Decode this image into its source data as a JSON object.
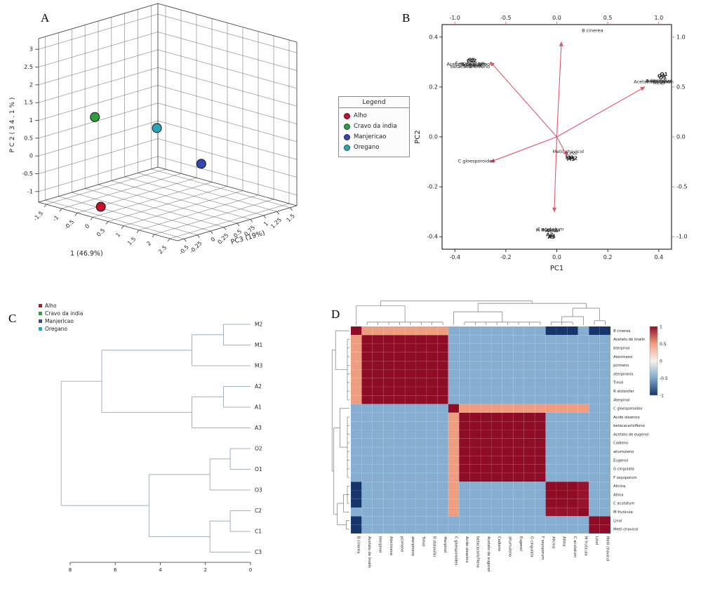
{
  "panel_labels": {
    "a": "A",
    "b": "B",
    "c": "C",
    "d": "D"
  },
  "legend_a": {
    "title": "Legend",
    "items": [
      {
        "label": "Alho",
        "color": "#c8102e"
      },
      {
        "label": "Cravo da india",
        "color": "#2f9e41"
      },
      {
        "label": "Manjericao",
        "color": "#3347b5"
      },
      {
        "label": "Oregano",
        "color": "#2aa7b5"
      }
    ]
  },
  "chart_data": [
    {
      "panel": "A",
      "type": "scatter3d",
      "axes": {
        "x": {
          "label": "1 (46.9%)",
          "ticks": [
            -1.5,
            -1,
            -0.5,
            0,
            0.5,
            1,
            1.5,
            2,
            2.5
          ],
          "range": [
            -1.75,
            2.75
          ]
        },
        "y": {
          "label": "P C 2  ( 3 4 . 1 % )",
          "ticks": [
            3,
            2.5,
            2,
            1.5,
            1,
            0.5,
            0,
            -0.5,
            -1
          ],
          "range": [
            -1.3,
            3.3
          ]
        },
        "z": {
          "label": "PC3 (19%)",
          "ticks": [
            -0.5,
            -0.25,
            0,
            0.25,
            0.5,
            0.75,
            1,
            1.25,
            1.5
          ],
          "range": [
            -0.625,
            1.625
          ]
        }
      },
      "points": [
        {
          "label": "Alho",
          "color": "#c8102e",
          "x": 0.05,
          "y": -1.05,
          "z": -0.5
        },
        {
          "label": "Cravo da india",
          "color": "#2f9e41",
          "x": -1.0,
          "y": 1.0,
          "z": 0.0
        },
        {
          "label": "Manjericao",
          "color": "#3347b5",
          "x": 0.9,
          "y": -0.25,
          "z": 0.9
        },
        {
          "label": "Oregano",
          "color": "#2aa7b5",
          "x": 0.15,
          "y": 0.75,
          "z": 0.5
        }
      ]
    },
    {
      "panel": "B",
      "type": "biplot",
      "xlabel": "PC1",
      "ylabel": "PC2",
      "xlim": [
        -0.45,
        0.45
      ],
      "ylim": [
        -0.45,
        0.45
      ],
      "secondary_lim": [
        -1.125,
        1.125
      ],
      "bottom_ticks": [
        "-0.4",
        "-0.2",
        "0.0",
        "0.2",
        "0.4"
      ],
      "left_ticks": [
        "-0.4",
        "-0.2",
        "0.0",
        "0.2",
        "0.4"
      ],
      "top_ticks": [
        "-1.0",
        "-0.5",
        "0.0",
        "0.5",
        "1.0"
      ],
      "right_ticks": [
        "-1.0",
        "-0.5",
        "0.0",
        "0.5",
        "1.0"
      ],
      "accent_color": "#e2556e",
      "arrows": [
        {
          "x": 0.018,
          "y": 0.38
        },
        {
          "x": -0.26,
          "y": 0.3
        },
        {
          "x": 0.345,
          "y": 0.2
        },
        {
          "x": -0.26,
          "y": -0.1
        },
        {
          "x": 0.04,
          "y": -0.075
        },
        {
          "x": -0.01,
          "y": -0.3
        }
      ],
      "loading_labels": [
        {
          "text": "B cinerea",
          "x": 0.14,
          "y": 0.42,
          "anchor": "middle"
        },
        {
          "text": "Acetato de eugenol",
          "x": -0.345,
          "y": 0.285,
          "anchor": "middle"
        },
        {
          "text": "Eugenol",
          "x": -0.33,
          "y": 0.28,
          "anchor": "middle"
        },
        {
          "text": "betacacariofileno",
          "x": -0.34,
          "y": 0.276,
          "anchor": "middle"
        },
        {
          "text": "Cadieno",
          "x": -0.35,
          "y": 0.282,
          "anchor": "middle"
        },
        {
          "text": "G cingulata",
          "x": -0.325,
          "y": 0.286,
          "anchor": "middle"
        },
        {
          "text": "F oxysporum",
          "x": -0.34,
          "y": 0.29,
          "anchor": "middle"
        },
        {
          "text": "Acetato de linalin",
          "x": 0.38,
          "y": 0.215,
          "anchor": "middle"
        },
        {
          "text": "Timol",
          "x": 0.4,
          "y": 0.21,
          "anchor": "middle"
        },
        {
          "text": "pcimeno",
          "x": 0.39,
          "y": 0.22,
          "anchor": "middle"
        },
        {
          "text": "bterpinol",
          "x": 0.41,
          "y": 0.215,
          "anchor": "middle"
        },
        {
          "text": "R stolonifer",
          "x": 0.4,
          "y": 0.218,
          "anchor": "middle"
        },
        {
          "text": "C gloesporoides",
          "x": -0.245,
          "y": -0.102,
          "anchor": "end"
        },
        {
          "text": "Metil chavicol",
          "x": 0.045,
          "y": -0.065,
          "anchor": "middle"
        },
        {
          "text": "Linol",
          "x": 0.06,
          "y": -0.072,
          "anchor": "middle"
        },
        {
          "text": "Alicina",
          "x": -0.03,
          "y": -0.378,
          "anchor": "middle"
        },
        {
          "text": "Aliina",
          "x": -0.02,
          "y": -0.382,
          "anchor": "middle"
        },
        {
          "text": "C acutatum",
          "x": -0.025,
          "y": -0.375,
          "anchor": "middle"
        },
        {
          "text": "M fruticula",
          "x": -0.035,
          "y": -0.38,
          "anchor": "middle"
        }
      ],
      "scores": [
        {
          "text": "C1",
          "x": -0.34,
          "y": 0.298
        },
        {
          "text": "C2",
          "x": -0.328,
          "y": 0.3
        },
        {
          "text": "C3",
          "x": -0.335,
          "y": 0.302
        },
        {
          "text": "O1",
          "x": 0.42,
          "y": 0.245
        },
        {
          "text": "O2",
          "x": 0.41,
          "y": 0.238
        },
        {
          "text": "O3",
          "x": 0.415,
          "y": 0.23
        },
        {
          "text": "M1",
          "x": 0.05,
          "y": -0.088
        },
        {
          "text": "M2",
          "x": 0.065,
          "y": -0.092
        },
        {
          "text": "M3",
          "x": 0.055,
          "y": -0.095
        },
        {
          "text": "A1",
          "x": -0.018,
          "y": -0.403
        },
        {
          "text": "A2",
          "x": -0.028,
          "y": -0.398
        },
        {
          "text": "A3",
          "x": -0.022,
          "y": -0.408
        }
      ]
    },
    {
      "panel": "C",
      "type": "dendrogram",
      "axis_ticks": [
        8,
        6,
        4,
        2,
        0
      ],
      "legend": [
        {
          "label": "Alho",
          "color": "#c8102e"
        },
        {
          "label": "Cravo da india",
          "color": "#2f9e41"
        },
        {
          "label": "Manjericao",
          "color": "#3347b5"
        },
        {
          "label": "Oregano",
          "color": "#2aa7b5"
        }
      ],
      "leaf_colors": {
        "M": "#4b5fc0",
        "A": "#d8414f",
        "O": "#35b8c9",
        "C": "#2f9e41"
      },
      "tree": {
        "h": 8.4,
        "c": [
          {
            "h": 6.6,
            "c": [
              {
                "h": 2.6,
                "c": [
                  {
                    "h": 1.2,
                    "c": [
                      "M2",
                      "M1"
                    ]
                  },
                  "M3"
                ]
              },
              {
                "h": 2.6,
                "c": [
                  {
                    "h": 1.2,
                    "c": [
                      "A2",
                      "A1"
                    ]
                  },
                  "A3"
                ]
              }
            ]
          },
          {
            "h": 4.5,
            "c": [
              {
                "h": 1.8,
                "c": [
                  {
                    "h": 0.9,
                    "c": [
                      "O2",
                      "O1"
                    ]
                  },
                  "O3"
                ]
              },
              {
                "h": 1.8,
                "c": [
                  {
                    "h": 0.9,
                    "c": [
                      "C2",
                      "C1"
                    ]
                  },
                  "C3"
                ]
              }
            ]
          }
        ]
      }
    },
    {
      "panel": "D",
      "type": "heatmap-correlation",
      "labels": [
        "B cinerea",
        "Acetato de linalin",
        "bterpinol",
        "Alocimeno",
        "pcimeno",
        "aterpineno",
        "Timol",
        "R stolonifer",
        "4terpinol",
        "C gloesporoides",
        "Acido oleanico",
        "betacacariofileno",
        "Acetato de eugenol",
        "Cadieno",
        "ahumuleno",
        "Eugenol",
        "G cingulata",
        "F oxysporum",
        "Alicina",
        "Allina",
        "C acutatum",
        "M fruticula",
        "Linol",
        "Metil chavicol"
      ],
      "groups": [
        [
          0
        ],
        [
          1,
          2,
          3,
          4,
          5,
          6,
          7,
          8
        ],
        [
          9
        ],
        [
          10,
          11,
          12,
          13,
          14,
          15,
          16,
          17
        ],
        [
          18,
          19,
          20
        ],
        [
          21
        ],
        [
          22,
          23
        ]
      ],
      "group_correlations": {
        "within": [
          1,
          1,
          1,
          1,
          1,
          1,
          1
        ],
        "between": {
          "0-1": 0.5,
          "0-2": -0.3,
          "0-3": -0.3,
          "0-4": -1,
          "0-5": -0.3,
          "0-6": -1,
          "1-2": -0.3,
          "1-3": -0.3,
          "1-4": -0.3,
          "1-5": -0.3,
          "1-6": -0.3,
          "2-3": 0.5,
          "2-4": 0.5,
          "2-5": 0.5,
          "2-6": -0.3,
          "3-4": -0.3,
          "3-5": -0.3,
          "3-6": -0.3,
          "4-5": 0.9,
          "4-6": -0.3,
          "5-6": -0.3
        }
      },
      "value_colors": {
        "1": "#8e0c25",
        "0.9": "#97122b",
        "0.5": "#ef9d80",
        "-0.3": "#85aed1",
        "-1": "#16356b"
      },
      "colorbar_ticks": [
        "1",
        "0.5",
        "0",
        "-0.5",
        "-1"
      ],
      "colorbar_stops": [
        "#8e0c25",
        "#ef9d80",
        "#f7f3ec",
        "#7fa8cc",
        "#16356b"
      ],
      "col_tree": {
        "h": 1.0,
        "c": [
          {
            "h": 0.8,
            "c": [
              {
                "leaf": 0
              },
              {
                "h": 0.12,
                "comb": [
                  1,
                  8
                ]
              }
            ]
          },
          {
            "h": 0.9,
            "c": [
              {
                "h": 0.55,
                "c": [
                  {
                    "leaf": 9
                  },
                  {
                    "h": 0.12,
                    "comb": [
                      10,
                      17
                    ]
                  }
                ]
              },
              {
                "h": 0.7,
                "c": [
                  {
                    "h": 0.35,
                    "c": [
                      {
                        "h": 0.12,
                        "comb": [
                          18,
                          20
                        ]
                      },
                      {
                        "leaf": 21
                      }
                    ]
                  },
                  {
                    "h": 0.18,
                    "comb": [
                      22,
                      23
                    ]
                  }
                ]
              }
            ]
          }
        ]
      }
    }
  ]
}
